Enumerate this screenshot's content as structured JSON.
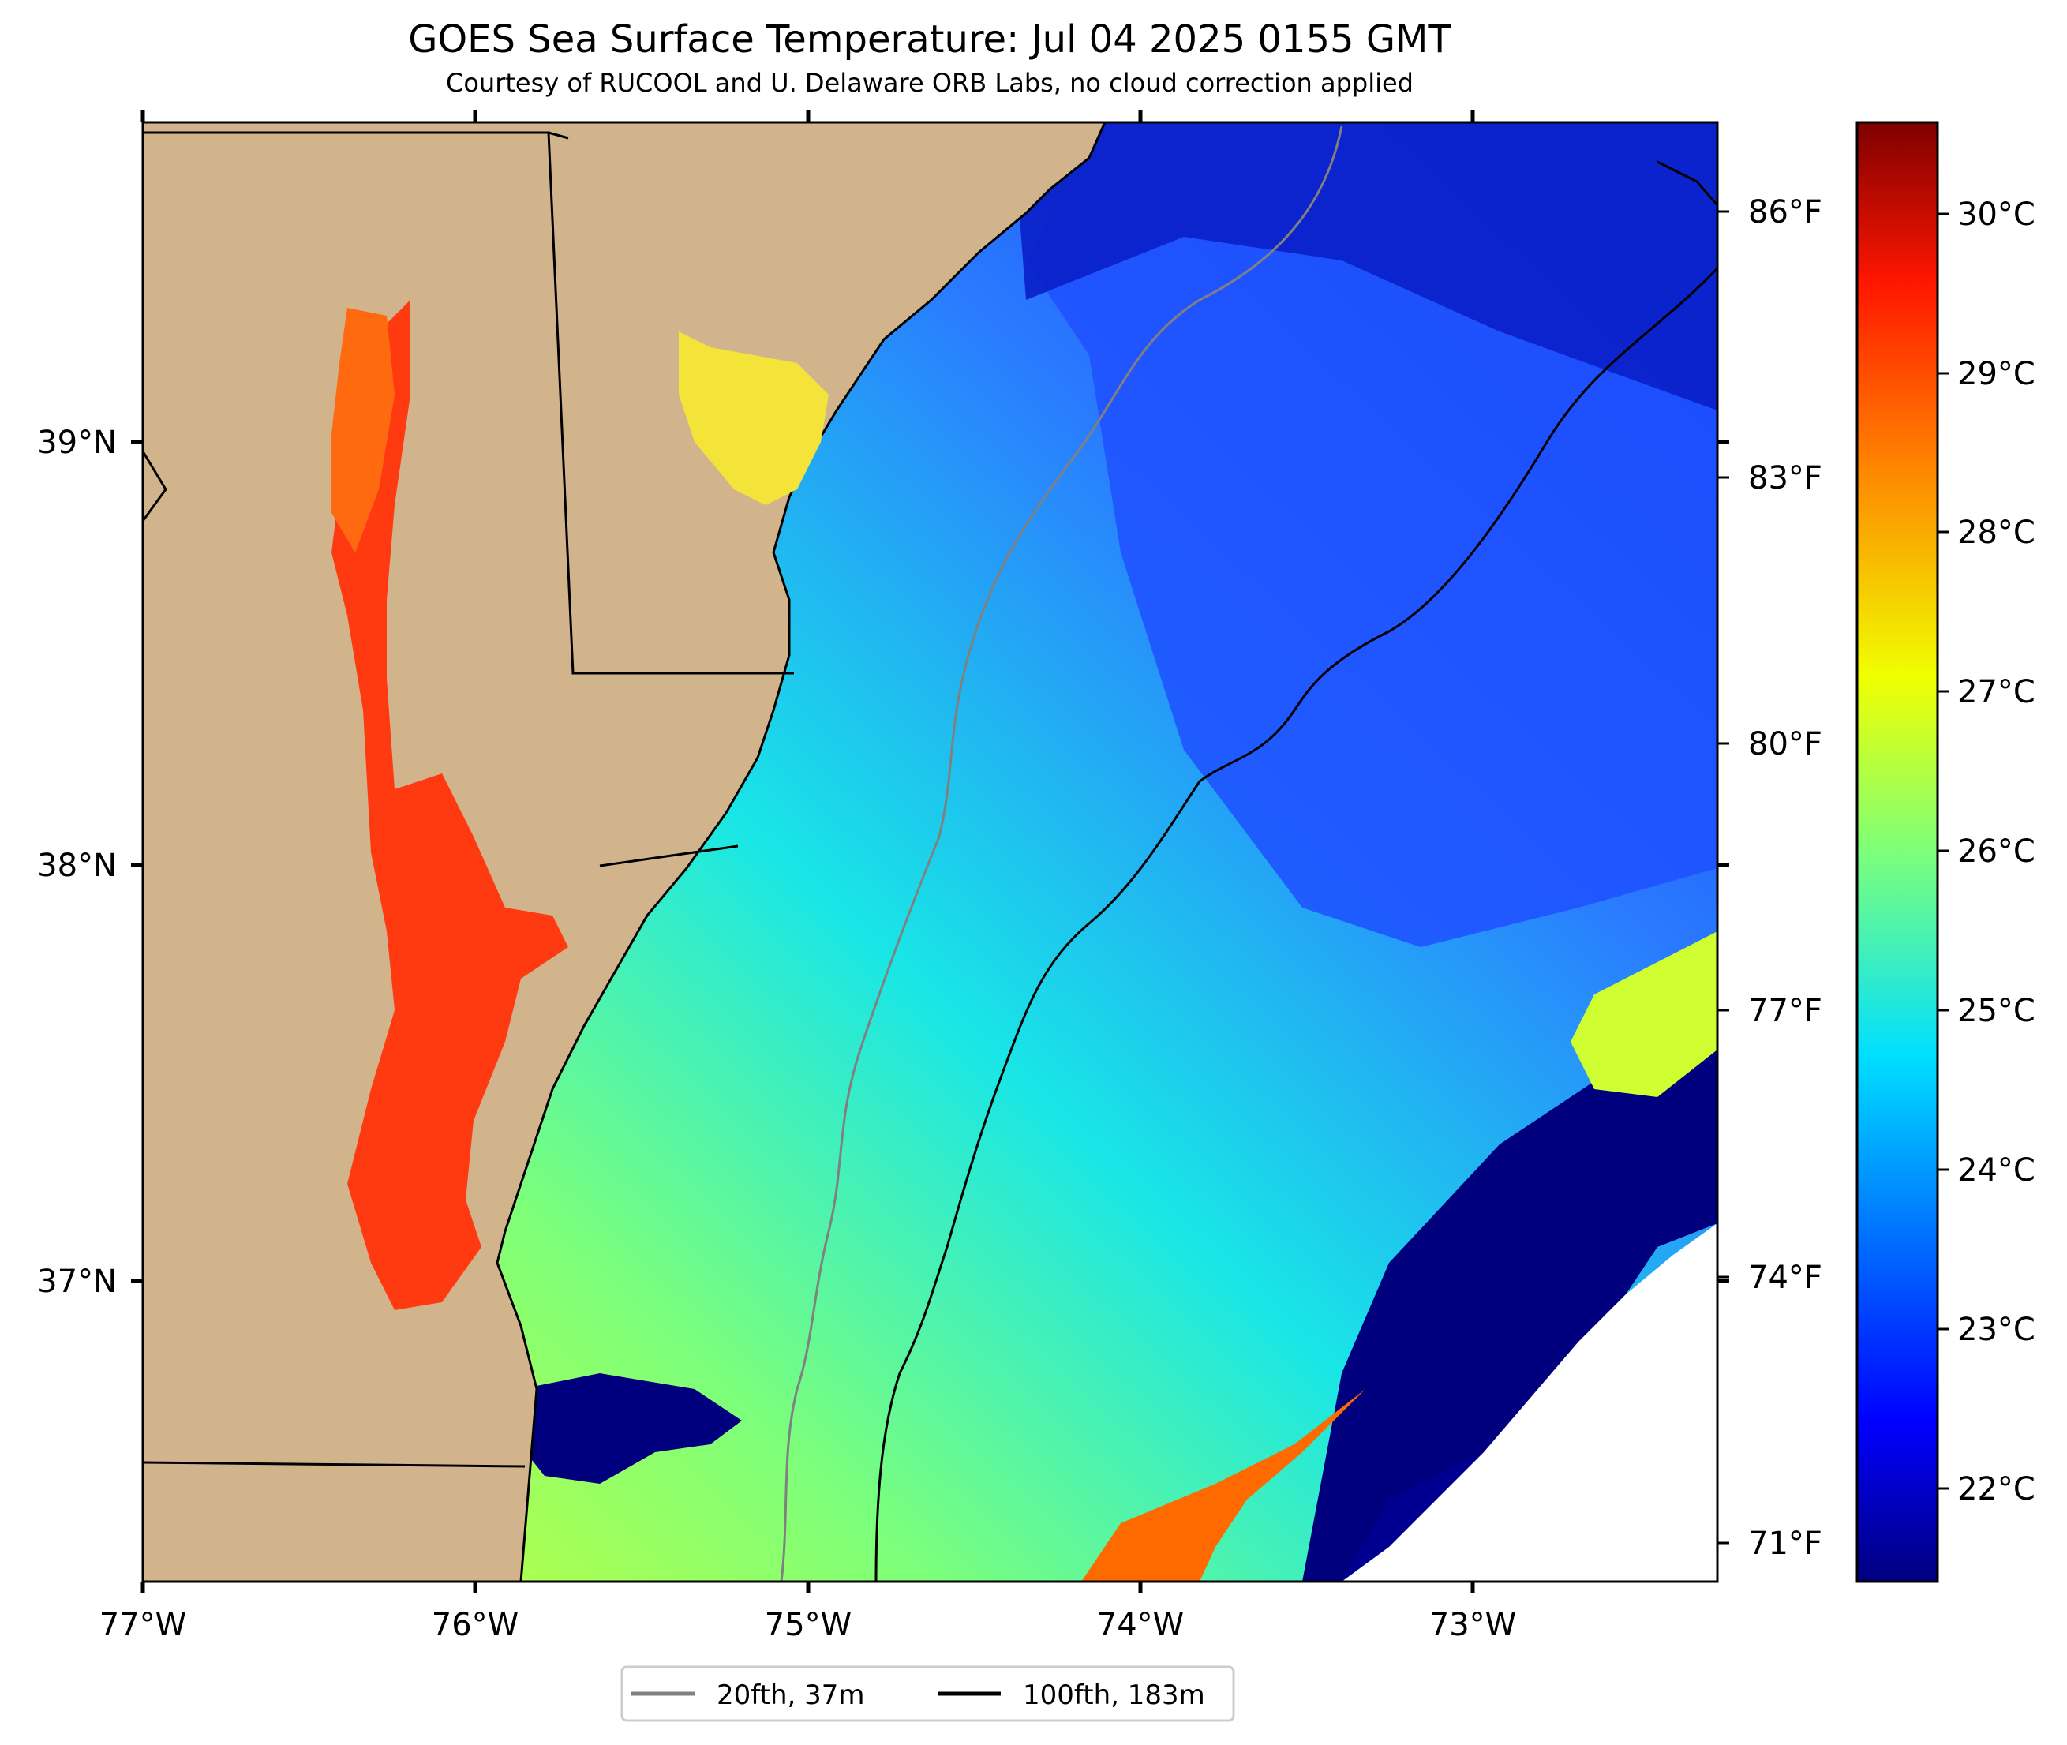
{
  "title": "GOES Sea Surface Temperature: Jul 04 2025 0155 GMT",
  "subtitle": "Courtesy of RUCOOL and U. Delaware ORB Labs, no cloud correction applied",
  "map": {
    "lon_ticks": [
      "77°W",
      "76°W",
      "75°W",
      "74°W",
      "73°W"
    ],
    "lat_ticks": [
      "39°N",
      "38°N",
      "37°N"
    ],
    "extent": {
      "lon_min": -77.0,
      "lon_max": -72.25,
      "lat_min": 36.3,
      "lat_max": 39.75
    },
    "colors": {
      "land": "#d2b48c",
      "coast": "#000000",
      "no_data": "#ffffff",
      "contour_20fth": "#808080",
      "contour_100fth": "#000000"
    }
  },
  "colorbar": {
    "colormap": "jet",
    "celsius_ticks": [
      "30°C",
      "29°C",
      "28°C",
      "27°C",
      "26°C",
      "25°C",
      "24°C",
      "23°C",
      "22°C"
    ],
    "fahrenheit_ticks": [
      "86°F",
      "83°F",
      "80°F",
      "77°F",
      "74°F",
      "71°F"
    ],
    "range_c": [
      21.5,
      30.5
    ]
  },
  "legend": {
    "items": [
      {
        "label": "20fth, 37m",
        "color": "#808080"
      },
      {
        "label": "100fth, 183m",
        "color": "#000000"
      }
    ]
  }
}
